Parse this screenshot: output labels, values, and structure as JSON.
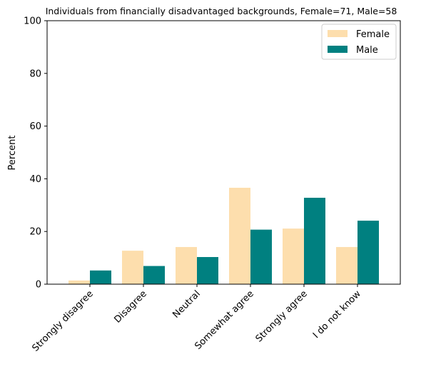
{
  "chart_data": {
    "type": "bar",
    "title": "Individuals from financially disadvantaged backgrounds, Female=71, Male=58",
    "xlabel": "",
    "ylabel": "Percent",
    "ylim": [
      0,
      100
    ],
    "yticks": [
      "0",
      "20",
      "40",
      "60",
      "80",
      "100"
    ],
    "categories": [
      "Strongly disagree",
      "Disagree",
      "Neutral",
      "Somewhat agree",
      "Strongly agree",
      "I do not know"
    ],
    "series": [
      {
        "name": "Female",
        "color": "#FDDEAD",
        "values": [
          1.4,
          12.7,
          14.1,
          36.6,
          21.1,
          14.1
        ]
      },
      {
        "name": "Male",
        "color": "#008080",
        "values": [
          5.2,
          6.9,
          10.3,
          20.7,
          32.8,
          24.1
        ]
      }
    ],
    "grid": false,
    "legend_position": "top-right"
  }
}
